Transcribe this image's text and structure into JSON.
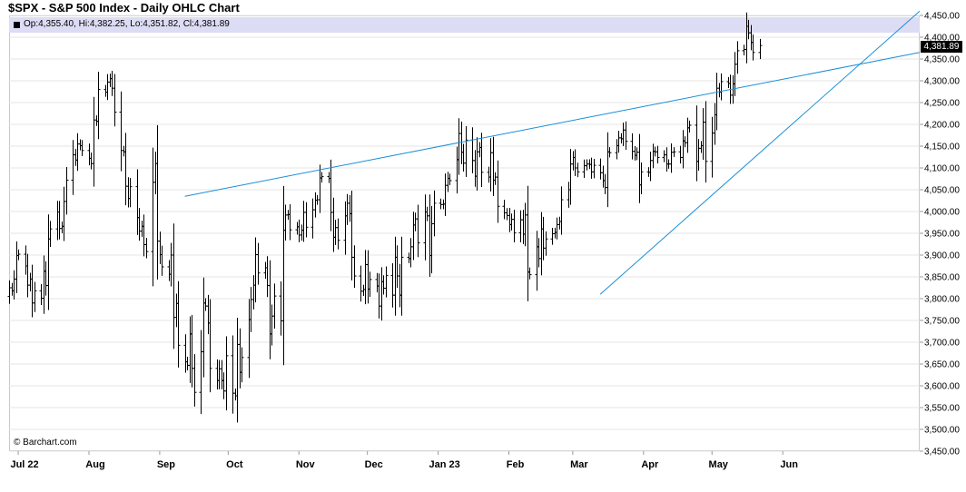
{
  "title": "$SPX - S&P 500 Index - Daily OHLC Chart",
  "ohlc_label": "Op:4,355.40, Hi:4,382.25, Lo:4,351.82, Cl:4,381.89",
  "last_price": "4,381.89",
  "credit": "© Barchart.com",
  "colors": {
    "bars": "#000000",
    "trendlines": "#1a8fd8",
    "ohlc_band": "#dcdcf4",
    "grid": "#e6e6e6"
  },
  "chart_data": {
    "type": "ohlc",
    "y_range": [
      3450,
      4450
    ],
    "y_ticks": [
      3450,
      3500,
      3550,
      3600,
      3650,
      3700,
      3750,
      3800,
      3850,
      3900,
      3950,
      4000,
      4050,
      4100,
      4150,
      4200,
      4250,
      4300,
      4350,
      4400,
      4450
    ],
    "y_tick_labels": [
      "3,450.00",
      "3,500.00",
      "3,550.00",
      "3,600.00",
      "3,650.00",
      "3,700.00",
      "3,750.00",
      "3,800.00",
      "3,850.00",
      "3,900.00",
      "3,950.00",
      "4,000.00",
      "4,050.00",
      "4,100.00",
      "4,150.00",
      "4,200.00",
      "4,250.00",
      "4,300.00",
      "4,350.00",
      "4,400.00",
      "4,450.00"
    ],
    "x_labels": [
      "Jul 22",
      "Aug",
      "Sep",
      "Oct",
      "Nov",
      "Dec",
      "Jan 23",
      "Feb",
      "Mar",
      "Apr",
      "May",
      "Jun"
    ],
    "x_label_dates": [
      "2022-07-01",
      "2022-08-01",
      "2022-09-01",
      "2022-10-01",
      "2022-11-01",
      "2022-12-01",
      "2023-01-01",
      "2023-02-01",
      "2023-03-01",
      "2023-04-01",
      "2023-05-01",
      "2023-06-01"
    ],
    "x_range": [
      "2022-06-27",
      "2023-07-31"
    ],
    "grid": true,
    "closes": [
      3825,
      3818,
      3845,
      3899,
      3902,
      3875,
      3831,
      3845,
      3790,
      3818,
      3801,
      3863,
      3830,
      3937,
      3960,
      3999,
      3961,
      3966,
      4023,
      4072,
      4130,
      4118,
      4155,
      4151,
      4140,
      4122,
      4110,
      4210,
      4207,
      4280,
      4274,
      4297,
      4305,
      4283,
      4228,
      4140,
      4137,
      4058,
      4030,
      4057,
      3986,
      3955,
      3966,
      3924,
      3908,
      4067,
      4110,
      3932,
      3901,
      3873,
      3856,
      3900,
      3757,
      3789,
      3693,
      3655,
      3647,
      3719,
      3640,
      3585,
      3678,
      3790,
      3783,
      3744,
      3640,
      3612,
      3639,
      3612,
      3588,
      3669,
      3583,
      3577,
      3695,
      3631,
      3665,
      3752,
      3798,
      3831,
      3901,
      3859,
      3871,
      3830,
      3719,
      3760,
      3806,
      3749,
      3957,
      3992,
      3993,
      3958,
      3965,
      3946,
      3957,
      3998,
      3964,
      4004,
      4026,
      4027,
      4077,
      4080,
      4076,
      3998,
      3941,
      3963,
      3934,
      3990,
      4019,
      3995,
      3895,
      3852,
      3817,
      3821,
      3878,
      3822,
      3844,
      3829,
      3783,
      3839,
      3824,
      3853,
      3808,
      3895,
      3852,
      3808,
      3895,
      3892,
      3919,
      3969,
      3983,
      3928,
      3999,
      3990,
      3899,
      3972,
      4019,
      4016,
      4017,
      4060,
      4076,
      4071,
      4119,
      4179,
      4136,
      4111,
      4164,
      4117,
      4081,
      4137,
      4147,
      4090,
      4079,
      4135,
      4072,
      4079,
      4012,
      3997,
      3991,
      3970,
      3982,
      3951,
      3981,
      3948,
      3992,
      3861,
      3855,
      3919,
      3892,
      3960,
      3916,
      3937,
      3949,
      3952,
      3970,
      3977,
      4027,
      4050,
      4109,
      4124,
      4100,
      4091,
      4105,
      4109,
      4108,
      4091,
      4106,
      4089,
      4071,
      4055,
      4137,
      4135,
      4151,
      4169,
      4167,
      4187,
      4161,
      4138,
      4129,
      4136,
      4061,
      4091,
      4090,
      4117,
      4138,
      4137,
      4124,
      4130,
      4109,
      4109,
      4136,
      4137,
      4124,
      4162,
      4158,
      4192,
      4198,
      4115,
      4145,
      4151,
      4205,
      4115,
      4180,
      4222,
      4283,
      4274,
      4298,
      4294,
      4267,
      4293,
      4338,
      4369,
      4372,
      4425,
      4410,
      4388,
      4365,
      4381
    ],
    "trendlines": [
      {
        "from": [
          "2022-09-12",
          4035
        ],
        "to": [
          "2023-07-31",
          4365
        ]
      },
      {
        "from": [
          "2023-03-13",
          3810
        ],
        "to": [
          "2023-07-31",
          4460
        ]
      }
    ]
  }
}
